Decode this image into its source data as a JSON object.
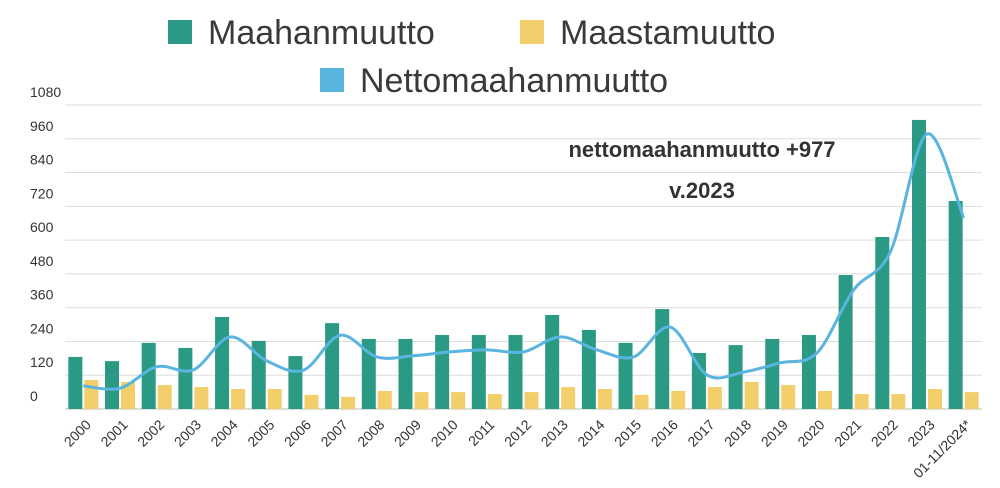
{
  "chart_data": {
    "type": "bar",
    "annotation": [
      "nettomaahanmuutto +977",
      "v.2023"
    ],
    "categories": [
      "2000",
      "2001",
      "2002",
      "2003",
      "2004",
      "2005",
      "2006",
      "2007",
      "2008",
      "2009",
      "2010",
      "2011",
      "2012",
      "2013",
      "2014",
      "2015",
      "2016",
      "2017",
      "2018",
      "2019",
      "2020",
      "2021",
      "2022",
      "2023",
      "01-11/2024*"
    ],
    "series": [
      {
        "name": "Maahanmuutto",
        "color": "#2a9a84",
        "type": "bar",
        "values": [
          185,
          170,
          235,
          217,
          327,
          242,
          188,
          305,
          249,
          249,
          263,
          263,
          263,
          334,
          281,
          235,
          355,
          199,
          227,
          249,
          263,
          476,
          611,
          1027,
          739
        ]
      },
      {
        "name": "Maastamuutto",
        "color": "#f2cf6b",
        "type": "bar",
        "values": [
          103,
          96,
          85,
          78,
          71,
          71,
          50,
          43,
          64,
          60,
          60,
          53,
          60,
          78,
          71,
          50,
          64,
          78,
          96,
          85,
          64,
          53,
          53,
          71,
          60
        ]
      },
      {
        "name": "Nettomaahanmuutto",
        "color": "#5ab4e0",
        "type": "line",
        "values": [
          82,
          74,
          150,
          139,
          256,
          171,
          138,
          262,
          185,
          189,
          203,
          210,
          203,
          256,
          210,
          185,
          291,
          121,
          131,
          164,
          199,
          423,
          558,
          977,
          679
        ]
      }
    ],
    "ylim": [
      0,
      1080
    ],
    "yticks": [
      0,
      120,
      240,
      360,
      480,
      600,
      720,
      840,
      960,
      1080
    ],
    "grid": true
  }
}
